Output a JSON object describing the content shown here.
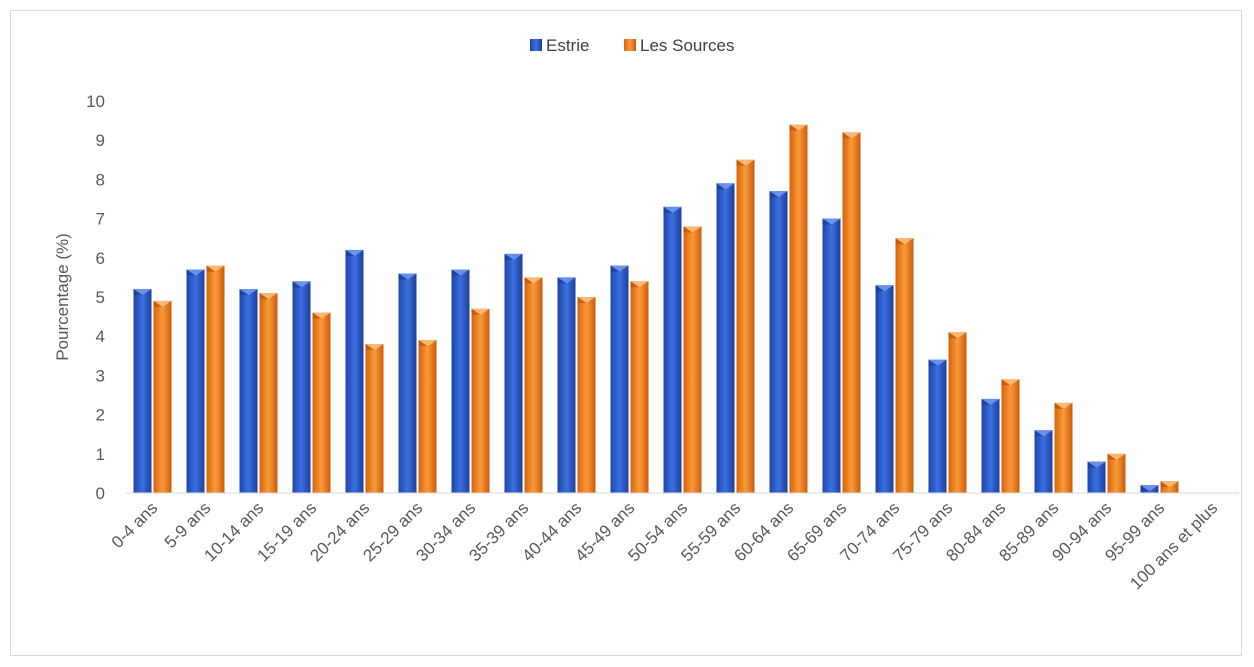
{
  "chart_data": {
    "type": "bar",
    "title": "",
    "xlabel": "",
    "ylabel": "Pourcentage (%)",
    "ylim": [
      0,
      10
    ],
    "yticks": [
      0,
      1,
      2,
      3,
      4,
      5,
      6,
      7,
      8,
      9,
      10
    ],
    "grid": false,
    "legend_position": "top-center",
    "categories": [
      "0-4 ans",
      "5-9 ans",
      "10-14 ans",
      "15-19 ans",
      "20-24 ans",
      "25-29 ans",
      "30-34 ans",
      "35-39 ans",
      "40-44 ans",
      "45-49 ans",
      "50-54 ans",
      "55-59 ans",
      "60-64 ans",
      "65-69 ans",
      "70-74 ans",
      "75-79 ans",
      "80-84 ans",
      "85-89 ans",
      "90-94 ans",
      "95-99 ans",
      "100 ans et plus"
    ],
    "series": [
      {
        "name": "Estrie",
        "color": "#2f5fd0",
        "values": [
          5.2,
          5.7,
          5.2,
          5.4,
          6.2,
          5.6,
          5.7,
          6.1,
          5.5,
          5.8,
          7.3,
          7.9,
          7.7,
          7.0,
          5.3,
          3.4,
          2.4,
          1.6,
          0.8,
          0.2,
          0.0
        ]
      },
      {
        "name": "Les Sources",
        "color": "#f07d1a",
        "values": [
          4.9,
          5.8,
          5.1,
          4.6,
          3.8,
          3.9,
          4.7,
          5.5,
          5.0,
          5.4,
          6.8,
          8.5,
          9.4,
          9.2,
          6.5,
          4.1,
          2.9,
          2.3,
          1.0,
          0.3,
          0.0
        ]
      }
    ]
  }
}
